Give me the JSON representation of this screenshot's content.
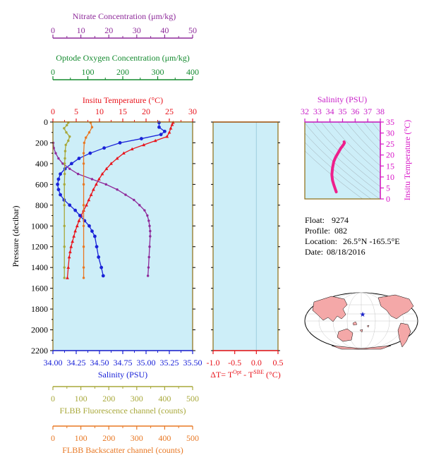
{
  "float_info": {
    "float_label": "Float:",
    "float_value": "9274",
    "profile_label": "Profile:",
    "profile_value": "082",
    "location_label": "Location:",
    "location_value": "26.5°N  -165.5°E",
    "date_label": "Date:",
    "date_value": "08/18/2016"
  },
  "colors": {
    "panel_bg": "#cdeef8",
    "temperature": "#e8141c",
    "salinity": "#1a22d8",
    "nitrate": "#8e2a9a",
    "oxygen": "#138a2e",
    "fluorescence": "#a8a83a",
    "backscatter": "#e87824",
    "ts_salinity_axis": "#c81ec8",
    "ts_temperature_axis": "#d815c8",
    "ts_curve": "#ee1f8c",
    "map_land": "#f4a8a8",
    "map_ocean": "#ffffff",
    "map_marker": "#1a22c8"
  },
  "chart_data": [
    {
      "type": "line",
      "title": "",
      "ylabel": "Pressure (decibar)",
      "ylim": [
        2200,
        0
      ],
      "yticks": [
        "0",
        "200",
        "400",
        "600",
        "800",
        "1000",
        "1200",
        "1400",
        "1600",
        "1800",
        "2000",
        "2200"
      ],
      "grid": false,
      "axes": {
        "nitrate": {
          "label": "Nitrate Concentration (μm/kg)",
          "range": [
            0,
            50
          ],
          "ticks": [
            "0",
            "10",
            "20",
            "30",
            "40",
            "50"
          ]
        },
        "oxygen": {
          "label": "Optode Oxygen Concentration (μm/kg)",
          "range": [
            0,
            400
          ],
          "ticks": [
            "0",
            "100",
            "200",
            "300",
            "400"
          ]
        },
        "temperature": {
          "label": "Insitu Temperature (°C)",
          "range": [
            0,
            30
          ],
          "ticks": [
            "0",
            "5",
            "10",
            "15",
            "20",
            "25",
            "30"
          ]
        },
        "salinity": {
          "label": "Salinity (PSU)",
          "range": [
            34.0,
            35.5
          ],
          "ticks": [
            "34.00",
            "34.25",
            "34.50",
            "34.75",
            "35.00",
            "35.25",
            "35.50"
          ]
        },
        "fluorescence": {
          "label": "FLBB Fluorescence channel (counts)",
          "range": [
            0,
            500
          ],
          "ticks": [
            "0",
            "100",
            "200",
            "300",
            "400",
            "500"
          ]
        },
        "backscatter": {
          "label": "FLBB Backscatter channel (counts)",
          "range": [
            0,
            500
          ],
          "ticks": [
            "0",
            "100",
            "200",
            "300",
            "400",
            "500"
          ]
        }
      },
      "series": [
        {
          "key": "temperature",
          "marker": "triangle",
          "points": [
            [
              25.8,
              5
            ],
            [
              25.6,
              25
            ],
            [
              25.3,
              60
            ],
            [
              25.0,
              100
            ],
            [
              24.5,
              140
            ],
            [
              22.0,
              180
            ],
            [
              19.5,
              220
            ],
            [
              17.0,
              260
            ],
            [
              15.2,
              300
            ],
            [
              13.8,
              350
            ],
            [
              12.5,
              400
            ],
            [
              11.5,
              450
            ],
            [
              10.6,
              500
            ],
            [
              9.9,
              550
            ],
            [
              9.3,
              600
            ],
            [
              8.7,
              650
            ],
            [
              8.2,
              700
            ],
            [
              7.7,
              750
            ],
            [
              7.2,
              800
            ],
            [
              6.6,
              850
            ],
            [
              6.1,
              900
            ],
            [
              5.6,
              950
            ],
            [
              5.2,
              1000
            ],
            [
              4.8,
              1050
            ],
            [
              4.5,
              1100
            ],
            [
              4.2,
              1150
            ],
            [
              3.9,
              1200
            ],
            [
              3.7,
              1250
            ],
            [
              3.5,
              1300
            ],
            [
              3.3,
              1400
            ],
            [
              3.1,
              1500
            ]
          ]
        },
        {
          "key": "salinity",
          "points": [
            [
              35.14,
              5
            ],
            [
              35.14,
              50
            ],
            [
              35.2,
              90
            ],
            [
              35.16,
              120
            ],
            [
              34.95,
              160
            ],
            [
              34.72,
              200
            ],
            [
              34.55,
              250
            ],
            [
              34.4,
              300
            ],
            [
              34.28,
              350
            ],
            [
              34.2,
              400
            ],
            [
              34.13,
              450
            ],
            [
              34.08,
              500
            ],
            [
              34.06,
              550
            ],
            [
              34.05,
              600
            ],
            [
              34.06,
              650
            ],
            [
              34.08,
              700
            ],
            [
              34.12,
              750
            ],
            [
              34.18,
              800
            ],
            [
              34.24,
              850
            ],
            [
              34.29,
              900
            ],
            [
              34.34,
              950
            ],
            [
              34.39,
              1000
            ],
            [
              34.42,
              1050
            ],
            [
              34.45,
              1100
            ],
            [
              34.47,
              1200
            ],
            [
              34.49,
              1300
            ],
            [
              34.52,
              1400
            ],
            [
              34.54,
              1480
            ]
          ]
        },
        {
          "key": "nitrate",
          "points": [
            [
              0.1,
              200
            ],
            [
              0.3,
              250
            ],
            [
              1,
              300
            ],
            [
              2,
              350
            ],
            [
              3.5,
              400
            ],
            [
              6,
              450
            ],
            [
              9,
              500
            ],
            [
              14,
              550
            ],
            [
              19,
              600
            ],
            [
              23,
              650
            ],
            [
              26,
              700
            ],
            [
              29,
              750
            ],
            [
              31,
              800
            ],
            [
              32.8,
              850
            ],
            [
              33.8,
              900
            ],
            [
              34.3,
              950
            ],
            [
              34.6,
              1000
            ],
            [
              34.8,
              1050
            ],
            [
              34.8,
              1100
            ],
            [
              34.6,
              1200
            ],
            [
              34.4,
              1300
            ],
            [
              34.2,
              1400
            ],
            [
              34,
              1480
            ]
          ]
        },
        {
          "key": "oxygen",
          "points": []
        },
        {
          "key": "fluorescence",
          "points": [
            [
              55,
              5
            ],
            [
              50,
              30
            ],
            [
              40,
              60
            ],
            [
              48,
              100
            ],
            [
              60,
              140
            ],
            [
              55,
              180
            ],
            [
              46,
              220
            ],
            [
              44,
              280
            ],
            [
              43,
              350
            ],
            [
              42,
              400
            ],
            [
              42,
              500
            ],
            [
              41,
              600
            ],
            [
              41,
              800
            ],
            [
              41,
              1000
            ],
            [
              41,
              1200
            ],
            [
              41,
              1400
            ],
            [
              41,
              1500
            ]
          ]
        },
        {
          "key": "backscatter",
          "points": [
            [
              135,
              5
            ],
            [
              140,
              50
            ],
            [
              130,
              100
            ],
            [
              118,
              150
            ],
            [
              112,
              200
            ],
            [
              110,
              300
            ],
            [
              110,
              400
            ],
            [
              110,
              600
            ],
            [
              110,
              800
            ],
            [
              110,
              1000
            ],
            [
              110,
              1200
            ],
            [
              110,
              1400
            ],
            [
              110,
              1500
            ]
          ]
        }
      ]
    },
    {
      "type": "line",
      "title": "",
      "xlabel": "ΔT= T^Opt - T^SBE (°C)",
      "xlim": [
        -1.0,
        0.5
      ],
      "xticks": [
        "-1.0",
        "-0.5",
        "0.0",
        "0.5"
      ],
      "series": []
    },
    {
      "type": "line",
      "xlabel": "Salinity (PSU)",
      "ylabel": "Insitu Temperature (°C)",
      "xlim": [
        32,
        38
      ],
      "ylim": [
        0,
        35
      ],
      "xticks": [
        "32",
        "33",
        "34",
        "35",
        "36",
        "37",
        "38"
      ],
      "yticks": [
        "0",
        "5",
        "10",
        "15",
        "20",
        "25",
        "30",
        "35"
      ],
      "series": [
        {
          "key": "ts",
          "points": [
            [
              34.5,
              3.2
            ],
            [
              34.42,
              4.5
            ],
            [
              34.3,
              6.5
            ],
            [
              34.2,
              8.5
            ],
            [
              34.15,
              11
            ],
            [
              34.2,
              14
            ],
            [
              34.3,
              17
            ],
            [
              34.45,
              19
            ],
            [
              34.65,
              21
            ],
            [
              34.85,
              23
            ],
            [
              35.05,
              24.5
            ],
            [
              35.15,
              25.5
            ],
            [
              35.12,
              26
            ]
          ]
        }
      ]
    }
  ]
}
